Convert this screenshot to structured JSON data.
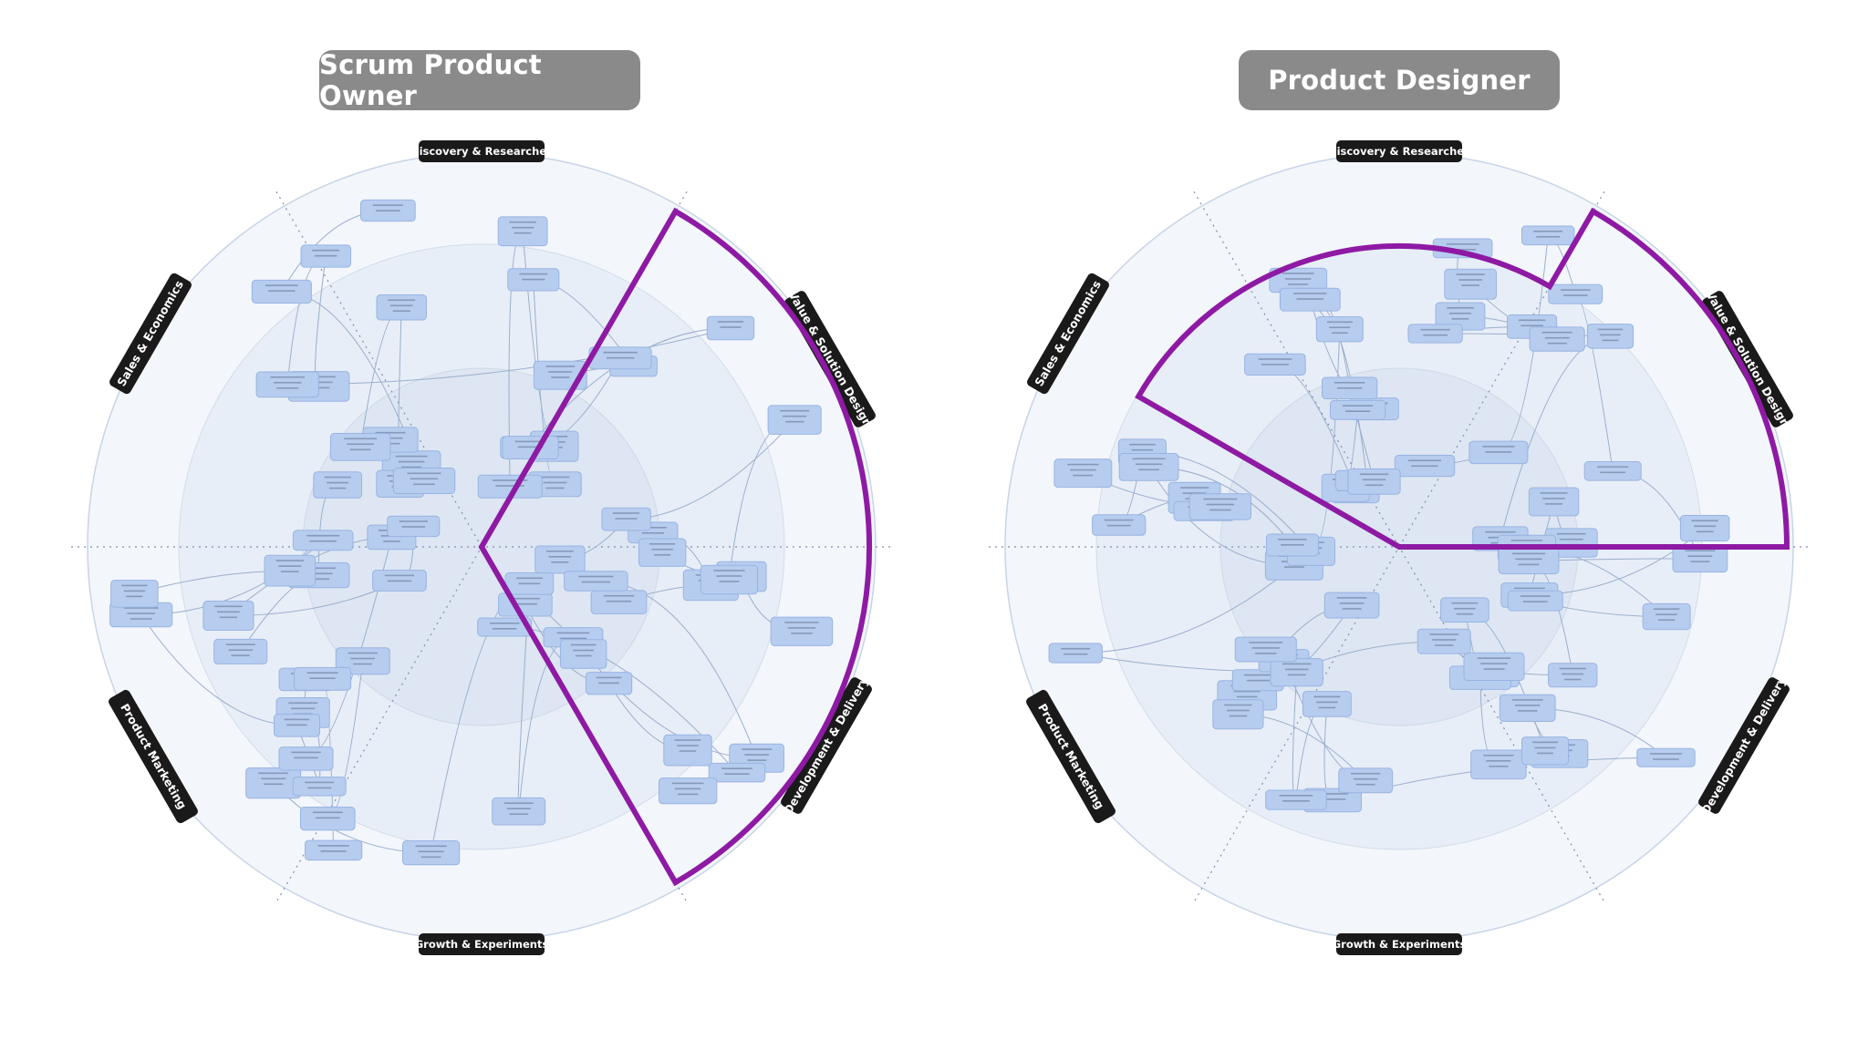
{
  "panels": [
    {
      "id": "left",
      "role_title": "Scrum Product Owner",
      "highlight": "value-solution-and-development-sectors",
      "sector_labels": {
        "top": "Discovery & Researches",
        "top_right": "Value & Solution Design",
        "bottom_right": "Development & Delivery",
        "bottom": "Growth & Experiments",
        "bottom_left": "Product Marketing",
        "top_left": "Sales & Economics"
      }
    },
    {
      "id": "right",
      "role_title": "Product Designer",
      "highlight": "value-solution-sector-plus-discovery-ring",
      "sector_labels": {
        "top": "Discovery & Researches",
        "top_right": "Value & Solution Design",
        "bottom_right": "Development & Delivery",
        "bottom": "Growth & Experiments",
        "bottom_left": "Product Marketing",
        "top_left": "Sales & Economics"
      }
    }
  ],
  "colors": {
    "title_bg": "#8a8a8a",
    "label_bg": "#1a1a1a",
    "highlight": "#8e1aa4",
    "node_fill": "#b7cdef",
    "node_stroke": "#98b4e2",
    "outer_ring": "#f3f6fb",
    "middle_ring": "#e8eef7",
    "inner_ring": "#dde6f2"
  }
}
